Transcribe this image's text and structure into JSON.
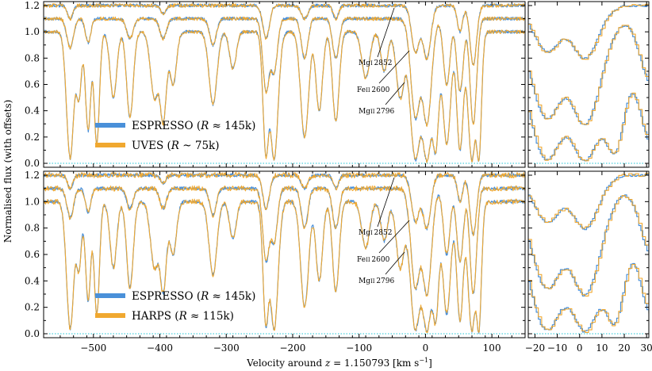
{
  "chart_data": {
    "type": "line",
    "ylabel": "Normalised flux (with offsets)",
    "xlabel": "Velocity around z = 1.150793 [km s−1]",
    "xlabel_parts": {
      "pre": "Velocity around ",
      "z": "z",
      "eq": " = 1.150793 [km s",
      "exp": "−1",
      "post": "]"
    },
    "main_xlim": [
      -575,
      150
    ],
    "zoom_xlim": [
      -23,
      31
    ],
    "ylim": [
      -0.03,
      1.23
    ],
    "main_xticks": [
      -500,
      -400,
      -300,
      -200,
      -100,
      0,
      100
    ],
    "main_xtick_labels": [
      "−500",
      "−400",
      "−300",
      "−200",
      "−100",
      "0",
      "100"
    ],
    "zoom_xticks": [
      -20,
      -10,
      0,
      10,
      20,
      30
    ],
    "zoom_xtick_labels": [
      "−20",
      "−10",
      "0",
      "10",
      "20",
      "30"
    ],
    "yticks": [
      0.0,
      0.2,
      0.4,
      0.6,
      0.8,
      1.0,
      1.2
    ],
    "ytick_labels": [
      "0.0",
      "0.2",
      "0.4",
      "0.6",
      "0.8",
      "1.0",
      "1.2"
    ],
    "baseline": 0.0,
    "offsets": {
      "MgII 2796": 0.0,
      "FeII 2600": 0.1,
      "MgI 2852": 0.2
    },
    "series_colors": {
      "ESPRESSO": "#4a90d9",
      "UVES": "#f0a830",
      "HARPS": "#f0a830"
    },
    "panels": [
      {
        "id": "top",
        "legend": [
          {
            "name": "ESPRESSO",
            "paren_open": " (",
            "R": "R",
            "rel": " ≈ 145k)"
          },
          {
            "name": "UVES",
            "paren_open": " (",
            "R": "R",
            "rel": " ~ 75k)"
          }
        ],
        "annotations": [
          {
            "ion": "Mg",
            "sub": "I",
            "wl": "2852"
          },
          {
            "ion": "Fe",
            "sub": "II",
            "wl": "2600"
          },
          {
            "ion": "Mg",
            "sub": "II",
            "wl": "2796"
          }
        ]
      },
      {
        "id": "bottom",
        "legend": [
          {
            "name": "ESPRESSO",
            "paren_open": " (",
            "R": "R",
            "rel": " ≈ 145k)"
          },
          {
            "name": "HARPS",
            "paren_open": " (",
            "R": "R",
            "rel": " ≈ 115k)"
          }
        ],
        "annotations": [
          {
            "ion": "Mg",
            "sub": "I",
            "wl": "2852"
          },
          {
            "ion": "Fe",
            "sub": "II",
            "wl": "2600"
          },
          {
            "ion": "Mg",
            "sub": "II",
            "wl": "2796"
          }
        ]
      }
    ],
    "lines": {
      "MgII 2796": {
        "continuum": 1.0,
        "components": [
          {
            "v": -535,
            "depth": 0.96,
            "width": 5.5
          },
          {
            "v": -522,
            "depth": 0.5,
            "width": 4
          },
          {
            "v": -508,
            "depth": 0.75,
            "width": 4
          },
          {
            "v": -495,
            "depth": 0.85,
            "width": 4
          },
          {
            "v": -470,
            "depth": 0.5,
            "width": 5
          },
          {
            "v": -445,
            "depth": 0.65,
            "width": 5
          },
          {
            "v": -408,
            "depth": 0.5,
            "width": 6
          },
          {
            "v": -395,
            "depth": 0.68,
            "width": 5
          },
          {
            "v": -380,
            "depth": 0.4,
            "width": 5
          },
          {
            "v": -320,
            "depth": 0.55,
            "width": 6
          },
          {
            "v": -290,
            "depth": 0.28,
            "width": 5
          },
          {
            "v": -240,
            "depth": 0.95,
            "width": 4.5
          },
          {
            "v": -228,
            "depth": 0.97,
            "width": 6
          },
          {
            "v": -182,
            "depth": 0.8,
            "width": 6
          },
          {
            "v": -160,
            "depth": 0.6,
            "width": 5
          },
          {
            "v": -135,
            "depth": 0.68,
            "width": 5
          },
          {
            "v": -90,
            "depth": 0.35,
            "width": 6
          },
          {
            "v": -62,
            "depth": 0.3,
            "width": 5
          },
          {
            "v": -38,
            "depth": 0.5,
            "width": 6
          },
          {
            "v": -15,
            "depth": 0.97,
            "width": 8
          },
          {
            "v": 2,
            "depth": 0.98,
            "width": 8
          },
          {
            "v": 15,
            "depth": 0.9,
            "width": 5
          },
          {
            "v": 32,
            "depth": 0.85,
            "width": 6
          },
          {
            "v": 52,
            "depth": 0.9,
            "width": 5
          },
          {
            "v": 70,
            "depth": 0.98,
            "width": 6
          },
          {
            "v": 80,
            "depth": 0.99,
            "width": 4
          }
        ]
      },
      "FeII 2600": {
        "continuum": 1.0,
        "components": [
          {
            "v": -535,
            "depth": 0.22,
            "width": 5
          },
          {
            "v": -508,
            "depth": 0.18,
            "width": 4
          },
          {
            "v": -445,
            "depth": 0.15,
            "width": 5
          },
          {
            "v": -395,
            "depth": 0.15,
            "width": 5
          },
          {
            "v": -320,
            "depth": 0.2,
            "width": 5
          },
          {
            "v": -240,
            "depth": 0.55,
            "width": 5
          },
          {
            "v": -228,
            "depth": 0.4,
            "width": 5
          },
          {
            "v": -182,
            "depth": 0.3,
            "width": 5
          },
          {
            "v": -135,
            "depth": 0.3,
            "width": 5
          },
          {
            "v": -15,
            "depth": 0.75,
            "width": 7
          },
          {
            "v": 2,
            "depth": 0.8,
            "width": 7
          },
          {
            "v": 32,
            "depth": 0.5,
            "width": 5
          },
          {
            "v": 52,
            "depth": 0.55,
            "width": 5
          },
          {
            "v": 72,
            "depth": 0.8,
            "width": 5
          }
        ]
      },
      "MgI 2852": {
        "continuum": 1.0,
        "components": [
          {
            "v": -535,
            "depth": 0.1,
            "width": 4
          },
          {
            "v": -395,
            "depth": 0.06,
            "width": 4
          },
          {
            "v": -240,
            "depth": 0.25,
            "width": 5
          },
          {
            "v": -182,
            "depth": 0.1,
            "width": 5
          },
          {
            "v": -135,
            "depth": 0.1,
            "width": 4
          },
          {
            "v": -15,
            "depth": 0.35,
            "width": 6
          },
          {
            "v": 2,
            "depth": 0.4,
            "width": 6
          },
          {
            "v": 52,
            "depth": 0.2,
            "width": 4
          },
          {
            "v": 72,
            "depth": 0.45,
            "width": 5
          }
        ]
      }
    }
  }
}
